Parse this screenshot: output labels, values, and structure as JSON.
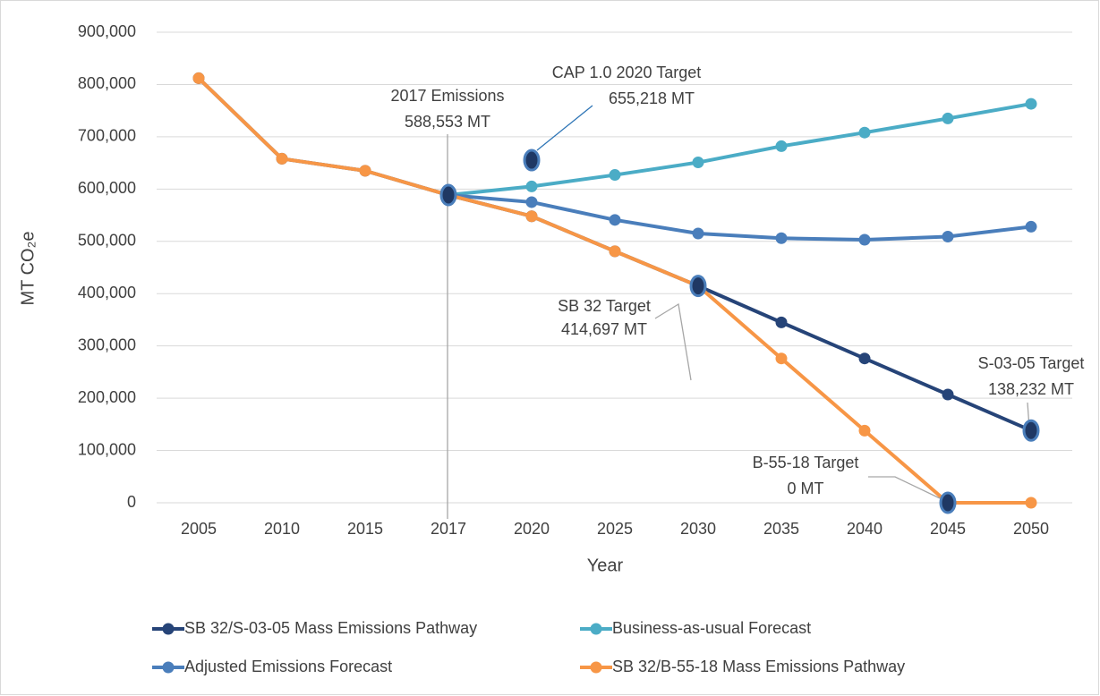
{
  "chart_data": {
    "type": "line",
    "x_label": "Year",
    "y_label": "MT CO₂e",
    "categories": [
      "2005",
      "2010",
      "2015",
      "2017",
      "2020",
      "2025",
      "2030",
      "2035",
      "2040",
      "2045",
      "2050"
    ],
    "series": [
      {
        "name": "SB 32/S-03-05 Mass Emissions Pathway",
        "color": "#264478",
        "values": [
          812000,
          658000,
          635000,
          588553,
          548000,
          481000,
          414697,
          345000,
          276000,
          207000,
          138232
        ]
      },
      {
        "name": "Business-as-usual Forecast",
        "color": "#4bacc6",
        "values": [
          null,
          null,
          null,
          588553,
          605000,
          627000,
          651000,
          682000,
          708000,
          735000,
          763000
        ]
      },
      {
        "name": "Adjusted Emissions Forecast",
        "color": "#4a7ebb",
        "values": [
          null,
          null,
          null,
          588553,
          575000,
          541000,
          515000,
          506000,
          503000,
          509000,
          528000
        ]
      },
      {
        "name": "SB 32/B-55-18 Mass Emissions Pathway",
        "color": "#f79646",
        "values": [
          812000,
          658000,
          635000,
          588553,
          548000,
          481000,
          414697,
          276000,
          138000,
          0,
          0
        ]
      }
    ],
    "annotations": [
      {
        "lines": [
          "2017 Emissions",
          "588,553 MT"
        ],
        "category": 3,
        "value": 588553
      },
      {
        "lines": [
          "CAP 1.0 2020 Target",
          "655,218 MT"
        ],
        "category": 4,
        "value": 655218
      },
      {
        "lines": [
          "SB 32 Target",
          "414,697 MT"
        ],
        "category": 6,
        "value": 414697
      },
      {
        "lines": [
          "S-03-05 Target",
          "138,232 MT"
        ],
        "category": 10,
        "value": 138232
      },
      {
        "lines": [
          "B-55-18 Target",
          "0 MT"
        ],
        "category": 9,
        "value": 0
      }
    ],
    "ylim": [
      0,
      900000
    ],
    "yticks": [
      0,
      {
        "value": 100000,
        "label": "100,000"
      },
      {
        "value": 200000,
        "label": "200,000"
      },
      {
        "value": 300000,
        "label": "300,000"
      },
      {
        "value": 400000,
        "label": "400,000"
      },
      {
        "value": 500000,
        "label": "500,000"
      },
      {
        "value": 600000,
        "label": "600,000"
      },
      {
        "value": 700000,
        "label": "700,000"
      },
      {
        "value": 800000,
        "label": "800,000"
      },
      {
        "value": 900000,
        "label": "900,000"
      }
    ],
    "grid": true,
    "legend": "bottom"
  }
}
